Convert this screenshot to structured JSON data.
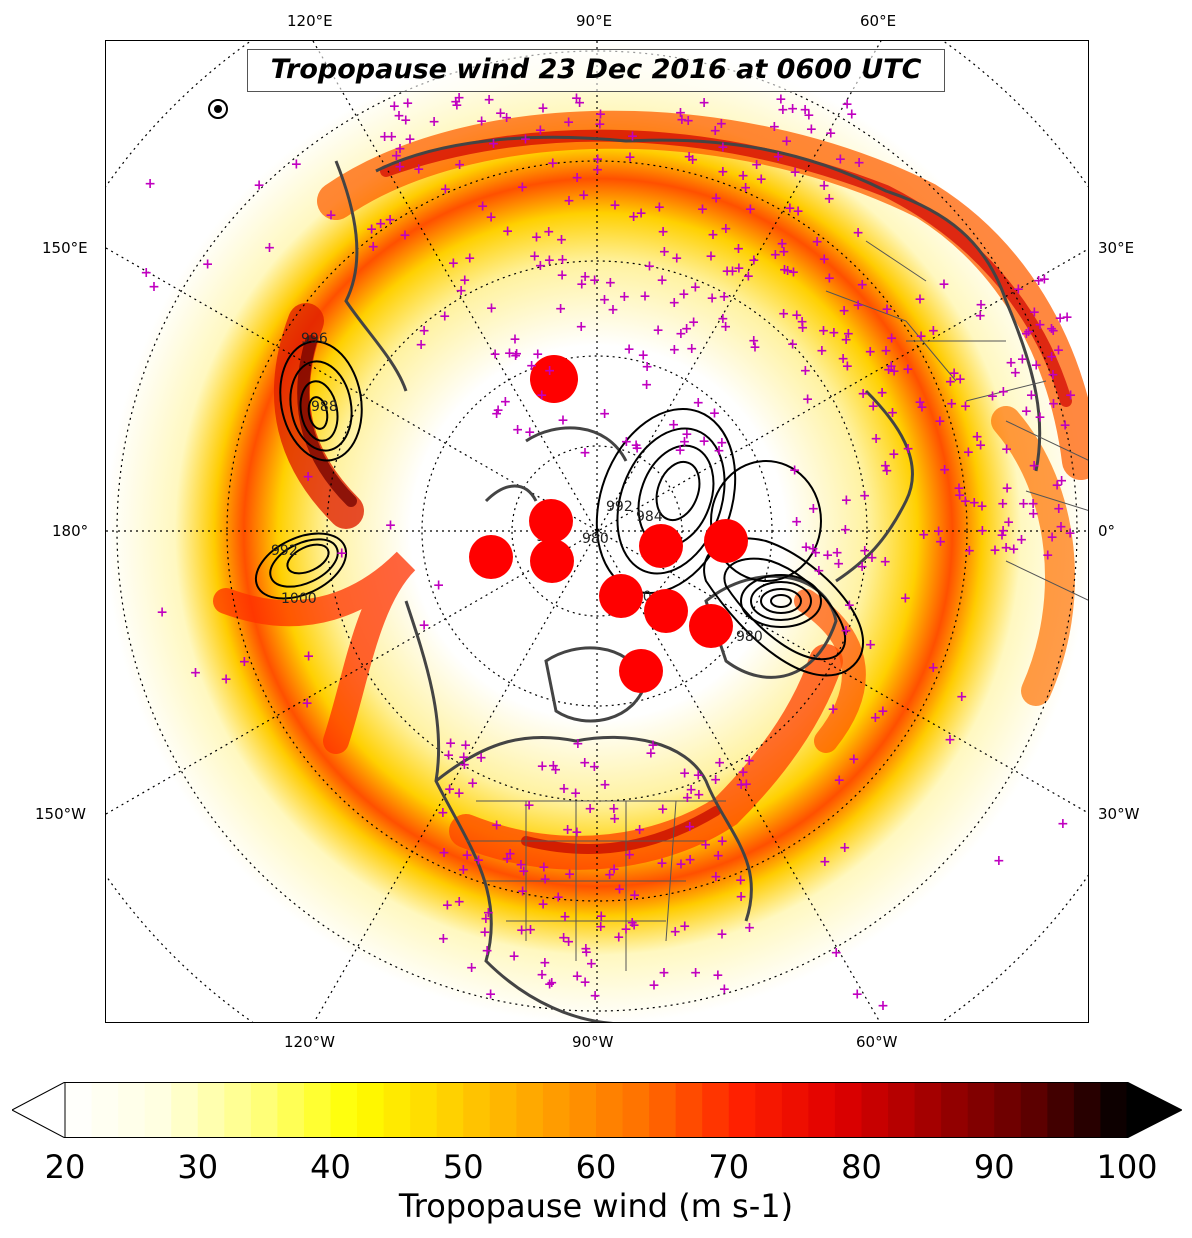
{
  "title": "Tropopause wind 23 Dec 2016 at 0600 UTC",
  "longitude_labels": {
    "top": [
      "120°E",
      "90°E",
      "60°E"
    ],
    "bottom": [
      "120°W",
      "90°W",
      "60°W"
    ],
    "left": [
      "150°E",
      "180°",
      "150°W"
    ],
    "right": [
      "30°E",
      "0°",
      "30°W"
    ]
  },
  "pressure_contour_labels": [
    "996",
    "988",
    "992",
    "1000",
    "980",
    "984",
    "988",
    "1000",
    "996",
    "992",
    "980"
  ],
  "colorbar": {
    "label": "Tropopause wind (m s-1)",
    "min": 20,
    "max": 100,
    "ticks": [
      "20",
      "30",
      "40",
      "50",
      "60",
      "70",
      "80",
      "90",
      "100"
    ],
    "extend": "both",
    "colors": [
      "#ffffff",
      "#ffffe0",
      "#ffff80",
      "#ffff00",
      "#ffd000",
      "#ffa000",
      "#ff7000",
      "#ff2000",
      "#e00000",
      "#a00000",
      "#600000",
      "#000000"
    ]
  },
  "markers": {
    "station_color": "#c000c0",
    "station_symbol": "+",
    "event_color": "#ff0000"
  }
}
